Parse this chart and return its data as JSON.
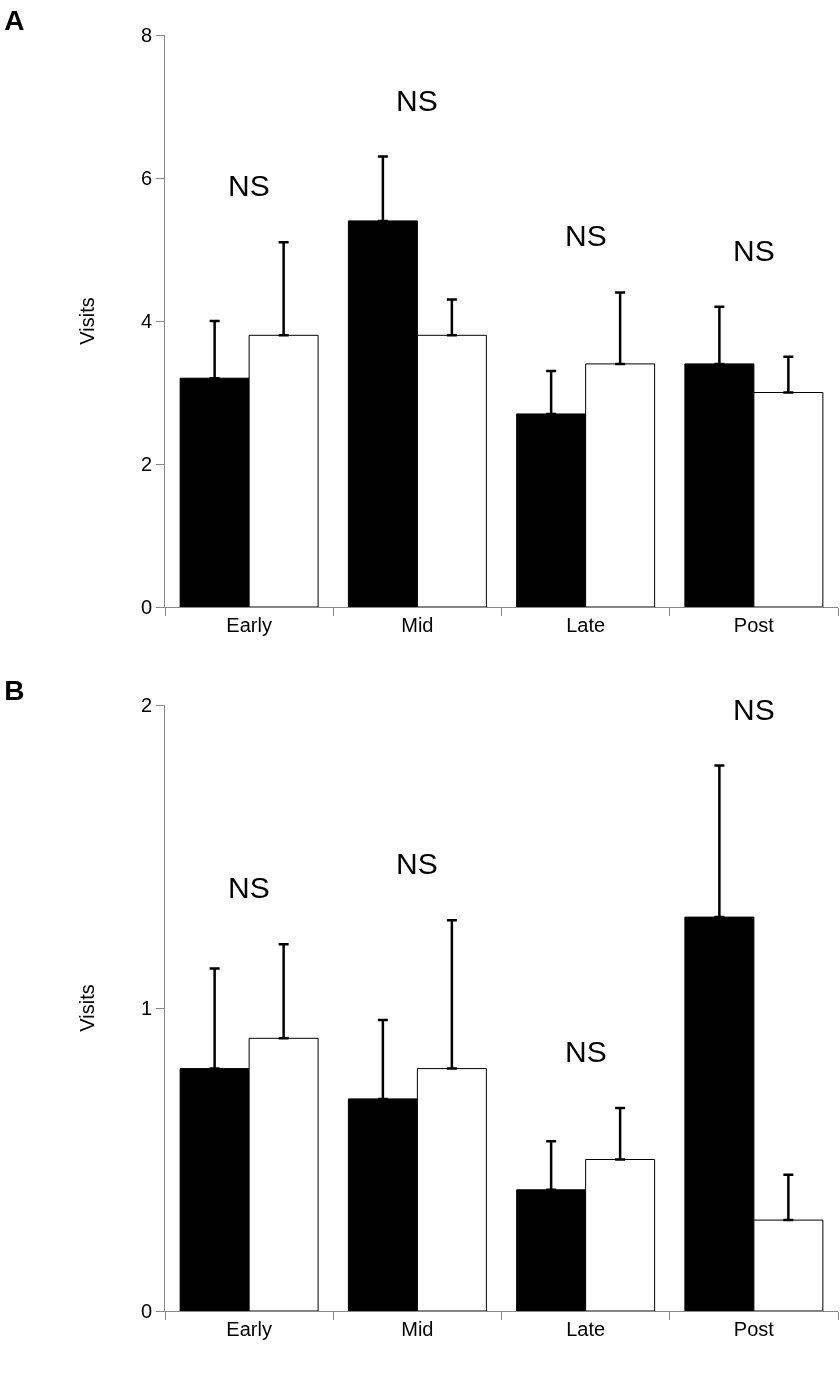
{
  "chart_data": [
    {
      "type": "bar",
      "title": "A",
      "ylabel": "Visits",
      "categories": [
        "Early",
        "Mid",
        "Late",
        "Post"
      ],
      "ylim": [
        0,
        8
      ],
      "yticks": [
        0,
        2,
        4,
        6,
        8
      ],
      "grid": false,
      "series": [
        {
          "color": "#000000",
          "values": [
            3.2,
            5.4,
            2.7,
            3.4
          ],
          "errors": [
            [
              3.2,
              4.0
            ],
            [
              5.4,
              6.3
            ],
            [
              2.7,
              3.3
            ],
            [
              3.4,
              4.2
            ]
          ]
        },
        {
          "color": "#ffffff",
          "values": [
            3.8,
            3.8,
            3.4,
            3.0
          ],
          "errors": [
            [
              3.8,
              5.1
            ],
            [
              3.8,
              4.3
            ],
            [
              3.4,
              4.4
            ],
            [
              3.0,
              3.5
            ]
          ]
        }
      ],
      "annotations": [
        "NS",
        "NS",
        "NS",
        "NS"
      ]
    },
    {
      "type": "bar",
      "title": "B",
      "ylabel": "Visits",
      "categories": [
        "Early",
        "Mid",
        "Late",
        "Post"
      ],
      "ylim": [
        0,
        2
      ],
      "yticks": [
        0,
        1,
        2
      ],
      "grid": false,
      "series": [
        {
          "color": "#000000",
          "values": [
            0.8,
            0.7,
            0.4,
            1.3
          ],
          "errors": [
            [
              0.8,
              1.13
            ],
            [
              0.7,
              0.96
            ],
            [
              0.4,
              0.56
            ],
            [
              1.3,
              1.8
            ]
          ]
        },
        {
          "color": "#ffffff",
          "values": [
            0.9,
            0.8,
            0.5,
            0.3
          ],
          "errors": [
            [
              0.9,
              1.21
            ],
            [
              0.8,
              1.29
            ],
            [
              0.5,
              0.67
            ],
            [
              0.3,
              0.45
            ]
          ]
        }
      ],
      "annotations": [
        "NS",
        "NS",
        "NS",
        "NS"
      ]
    }
  ]
}
